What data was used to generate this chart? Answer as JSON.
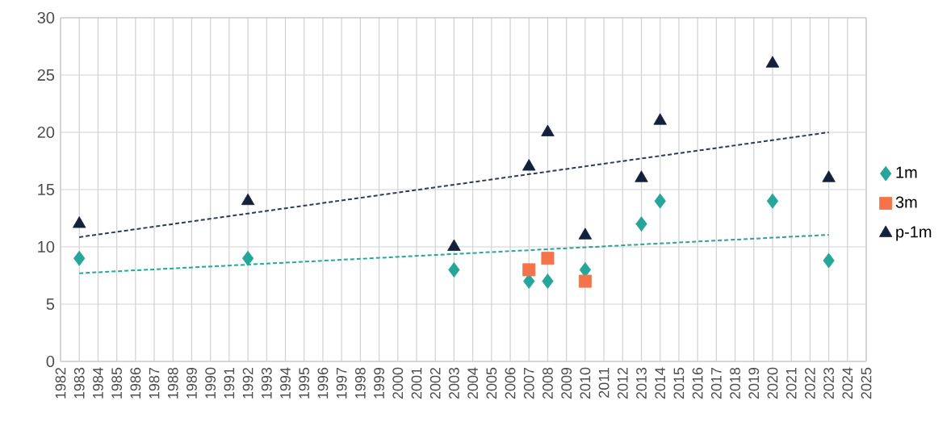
{
  "chart_data": {
    "type": "scatter",
    "xlim": [
      1982,
      2025
    ],
    "ylim": [
      0,
      30
    ],
    "xticks": [
      1982,
      1983,
      1984,
      1985,
      1986,
      1987,
      1988,
      1989,
      1990,
      1991,
      1992,
      1993,
      1994,
      1995,
      1996,
      1997,
      1998,
      1999,
      2000,
      2001,
      2002,
      2003,
      2004,
      2005,
      2006,
      2007,
      2008,
      2009,
      2010,
      2011,
      2012,
      2013,
      2014,
      2015,
      2016,
      2017,
      2018,
      2019,
      2020,
      2021,
      2022,
      2023,
      2024,
      2025
    ],
    "yticks": [
      0,
      5,
      10,
      15,
      20,
      25,
      30
    ],
    "grid": true,
    "legend": "right",
    "series": [
      {
        "name": "1m",
        "color": "#26a69a",
        "marker": "diamond",
        "x": [
          1983,
          1992,
          2003,
          2007,
          2008,
          2010,
          2013,
          2014,
          2020,
          2023
        ],
        "values": [
          9,
          9,
          8,
          7,
          7,
          8,
          12,
          14,
          14,
          8.8
        ]
      },
      {
        "name": "3m",
        "color": "#f4734a",
        "marker": "square",
        "x": [
          2007,
          2008,
          2010
        ],
        "values": [
          8,
          9,
          7
        ]
      },
      {
        "name": "p-1m",
        "color": "#14213d",
        "marker": "triangle",
        "x": [
          1983,
          1992,
          2003,
          2007,
          2008,
          2010,
          2013,
          2014,
          2020,
          2023
        ],
        "values": [
          12,
          14,
          10,
          17,
          20,
          11,
          16,
          21,
          26,
          16
        ]
      },
      {
        "type": "line",
        "color": "#26a69a",
        "line_style": "dashed",
        "marker": "none",
        "x": [
          1983,
          2023
        ],
        "values": [
          7.7,
          11.05
        ]
      },
      {
        "type": "line",
        "color": "#2e3a5c",
        "line_style": "dashed",
        "marker": "none",
        "x": [
          1983,
          2023
        ],
        "values": [
          10.85,
          20
        ]
      }
    ]
  }
}
